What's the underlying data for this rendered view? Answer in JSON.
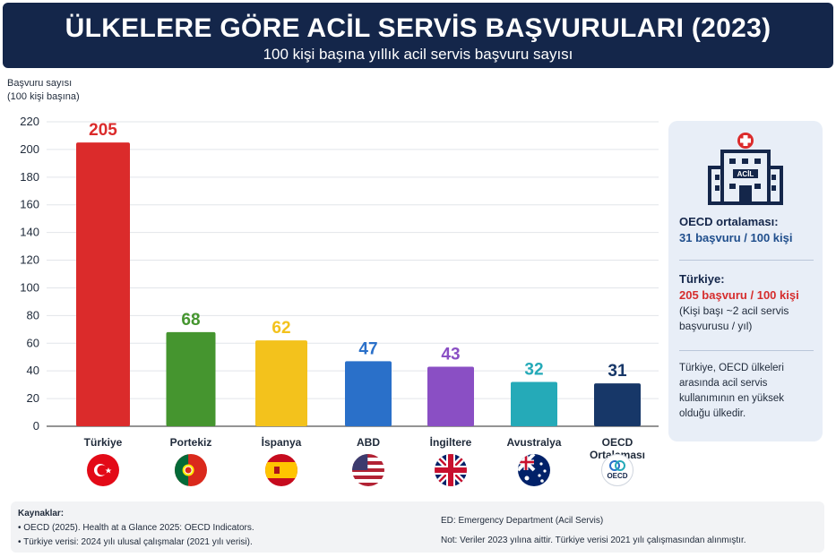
{
  "header": {
    "title": "ÜLKELERE GÖRE ACİL SERVİS BAŞVURULARI (2023)",
    "subtitle": "100 kişi başına yıllık acil servis başvuru sayısı"
  },
  "chart_data": {
    "type": "bar",
    "title": "ÜLKELERE GÖRE ACİL SERVİS BAŞVURULARI (2023)",
    "subtitle": "100 kişi başına yıllık acil servis başvuru sayısı",
    "ylabel_line1": "Başvuru sayısı",
    "ylabel_line2": "(100 kişi başına)",
    "ylim": [
      0,
      220
    ],
    "yticks": [
      0,
      20,
      40,
      60,
      80,
      100,
      120,
      140,
      160,
      180,
      200,
      220
    ],
    "grid": true,
    "categories": [
      "Türkiye",
      "Portekiz",
      "İspanya",
      "ABD",
      "İngiltere",
      "Avustralya",
      "OECD Ortalaması"
    ],
    "values": [
      205,
      68,
      62,
      47,
      43,
      32,
      31
    ],
    "colors": [
      "#db2b2b",
      "#45952f",
      "#f3c21c",
      "#2a70c9",
      "#8a4fc4",
      "#25aab8",
      "#173768"
    ],
    "flags": [
      "turkey-flag",
      "portugal-flag",
      "spain-flag",
      "usa-flag",
      "uk-flag",
      "australia-flag",
      "oecd-logo"
    ],
    "oecd_logo_text": "OECD"
  },
  "info": {
    "building_sign": "ACİL",
    "oecd_label": "OECD ortalaması:",
    "oecd_value": "31 başvuru / 100 kişi",
    "turkey_label": "Türkiye:",
    "turkey_value": "205 başvuru / 100 kişi",
    "turkey_note_line1": "(Kişi başı ~2 acil servis",
    "turkey_note_line2": "başvurusu / yıl)",
    "summary_line1": "Türkiye, OECD ülkeleri",
    "summary_line2": "arasında acil servis",
    "summary_line3": "kullanımının en yüksek",
    "summary_line4": "olduğu ülkedir."
  },
  "footer": {
    "sources_title": "Kaynaklar:",
    "source1": "• OECD (2025). Health at a Glance 2025: OECD Indicators.",
    "source2": "• Türkiye verisi: 2024 yılı ulusal çalışmalar (2021 yılı verisi).",
    "ed_note": "ED: Emergency Department (Acil Servis)",
    "data_note": "Not: Veriler 2023 yılına aittir. Türkiye verisi 2021 yılı çalışmasından alınmıştır."
  }
}
